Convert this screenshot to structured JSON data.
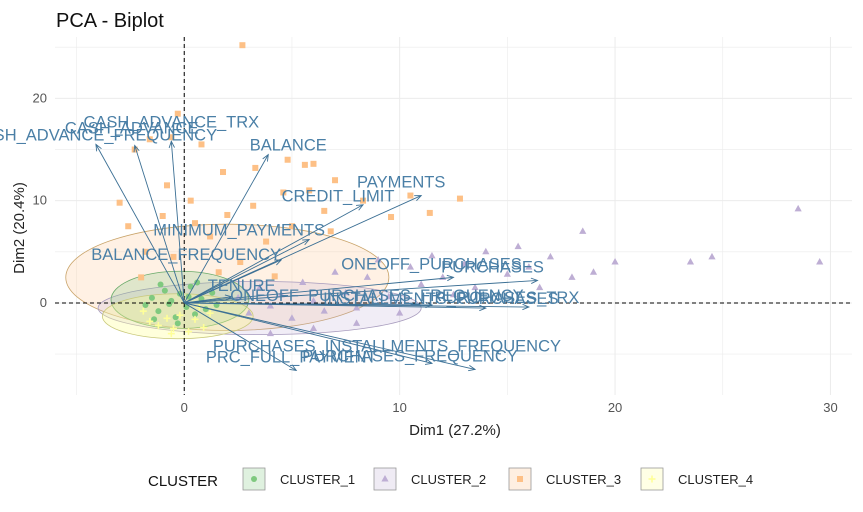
{
  "chart_data": {
    "type": "scatter",
    "title": "PCA - Biplot",
    "xlabel": "Dim1 (27.2%)",
    "ylabel": "Dim2 (20.4%)",
    "xlim": [
      -6,
      31
    ],
    "ylim": [
      -9,
      26
    ],
    "xticks": [
      0,
      10,
      20,
      30
    ],
    "yticks": [
      0,
      10,
      20
    ],
    "grid": true,
    "reference_lines": {
      "x": 0,
      "y": 0
    },
    "legend": {
      "title": "CLUSTER",
      "placement": "bottom",
      "entries": [
        {
          "name": "CLUSTER_1",
          "shape": "circle",
          "color": "#7fc97f"
        },
        {
          "name": "CLUSTER_2",
          "shape": "triangle",
          "color": "#beaed4"
        },
        {
          "name": "CLUSTER_3",
          "shape": "square",
          "color": "#fdc086"
        },
        {
          "name": "CLUSTER_4",
          "shape": "cross",
          "color": "#ffff99"
        }
      ]
    },
    "series": [
      {
        "name": "CLUSTER_1",
        "color": "#7fc97f",
        "points": [
          [
            -1.5,
            0.5
          ],
          [
            -1.2,
            -0.8
          ],
          [
            -0.9,
            1.2
          ],
          [
            -0.6,
            0.2
          ],
          [
            -0.4,
            -1.4
          ],
          [
            -0.2,
            0.9
          ],
          [
            0.1,
            -0.4
          ],
          [
            0.3,
            1.6
          ],
          [
            0.5,
            -1.1
          ],
          [
            0.8,
            0.4
          ],
          [
            1.0,
            -0.6
          ],
          [
            1.3,
            1.0
          ],
          [
            -1.8,
            -0.2
          ],
          [
            -1.1,
            1.8
          ],
          [
            -0.3,
            -2.0
          ],
          [
            0.6,
            2.0
          ],
          [
            1.5,
            -0.2
          ],
          [
            -0.7,
            -0.1
          ],
          [
            0.2,
            0.6
          ],
          [
            -1.4,
            -1.6
          ]
        ]
      },
      {
        "name": "CLUSTER_2",
        "color": "#beaed4",
        "points": [
          [
            2.5,
            0.5
          ],
          [
            3.0,
            -1.0
          ],
          [
            3.5,
            1.5
          ],
          [
            4.0,
            -0.3
          ],
          [
            4.5,
            0.8
          ],
          [
            5.0,
            -1.5
          ],
          [
            5.5,
            2.0
          ],
          [
            6.0,
            0.2
          ],
          [
            6.5,
            -0.8
          ],
          [
            7.0,
            3.0
          ],
          [
            7.5,
            1.0
          ],
          [
            8.0,
            -0.5
          ],
          [
            8.5,
            2.5
          ],
          [
            9.0,
            4.2
          ],
          [
            9.5,
            0.6
          ],
          [
            10.0,
            -1.0
          ],
          [
            10.5,
            3.5
          ],
          [
            11.0,
            1.8
          ],
          [
            11.5,
            4.6
          ],
          [
            12.0,
            2.5
          ],
          [
            12.5,
            0.8
          ],
          [
            13.0,
            3.8
          ],
          [
            13.5,
            1.5
          ],
          [
            14.0,
            5.0
          ],
          [
            15.0,
            2.8
          ],
          [
            15.5,
            5.5
          ],
          [
            16.0,
            3.5
          ],
          [
            16.5,
            1.5
          ],
          [
            17.0,
            4.5
          ],
          [
            18.0,
            2.5
          ],
          [
            18.5,
            7.0
          ],
          [
            19.0,
            3.0
          ],
          [
            20.0,
            4.0
          ],
          [
            23.5,
            4.0
          ],
          [
            24.5,
            4.5
          ],
          [
            28.5,
            9.2
          ],
          [
            29.5,
            4.0
          ],
          [
            6.0,
            -2.5
          ],
          [
            8.0,
            -2.0
          ],
          [
            4.0,
            -3.0
          ]
        ]
      },
      {
        "name": "CLUSTER_3",
        "color": "#fdc086",
        "points": [
          [
            2.7,
            25.2
          ],
          [
            4.8,
            14.0
          ],
          [
            3.3,
            13.2
          ],
          [
            5.6,
            13.5
          ],
          [
            -0.6,
            16.2
          ],
          [
            -1.6,
            16.0
          ],
          [
            -2.3,
            15.0
          ],
          [
            -0.3,
            18.5
          ],
          [
            0.8,
            15.5
          ],
          [
            1.8,
            12.8
          ],
          [
            5.8,
            11.0
          ],
          [
            6.0,
            13.6
          ],
          [
            7.0,
            12.0
          ],
          [
            8.3,
            10.0
          ],
          [
            10.5,
            10.5
          ],
          [
            11.4,
            8.8
          ],
          [
            12.8,
            10.2
          ],
          [
            4.6,
            10.8
          ],
          [
            3.2,
            9.5
          ],
          [
            2.0,
            8.6
          ],
          [
            0.5,
            7.8
          ],
          [
            -1.0,
            8.5
          ],
          [
            -2.6,
            7.5
          ],
          [
            -3.0,
            9.8
          ],
          [
            -1.8,
            5.0
          ],
          [
            1.2,
            6.5
          ],
          [
            3.8,
            6.0
          ],
          [
            5.0,
            7.5
          ],
          [
            6.8,
            7.0
          ],
          [
            2.6,
            4.0
          ],
          [
            -0.5,
            4.5
          ],
          [
            1.6,
            3.0
          ],
          [
            -2.0,
            2.5
          ],
          [
            4.2,
            2.6
          ],
          [
            9.6,
            8.4
          ],
          [
            6.5,
            9.0
          ],
          [
            -0.8,
            11.5
          ],
          [
            0.3,
            10.0
          ]
        ]
      },
      {
        "name": "CLUSTER_4",
        "color": "#ffff99",
        "points": [
          [
            -1.6,
            -1.8
          ],
          [
            -1.2,
            -2.2
          ],
          [
            -0.8,
            -1.5
          ],
          [
            -0.5,
            -2.5
          ],
          [
            -0.2,
            -1.2
          ],
          [
            0.2,
            -2.8
          ],
          [
            0.5,
            -1.6
          ],
          [
            0.9,
            -2.4
          ],
          [
            1.2,
            -1.0
          ],
          [
            -1.9,
            -0.8
          ],
          [
            -0.6,
            -3.0
          ],
          [
            0.7,
            -0.4
          ]
        ]
      }
    ],
    "variables": [
      {
        "name": "CASH_ADVANCE",
        "x": -2.3,
        "y": 15.4
      },
      {
        "name": "CASH_ADVANCE_TRX",
        "x": -0.6,
        "y": 15.8
      },
      {
        "name": "CASH_ADVANCE_FREQUENCY",
        "x": -4.1,
        "y": 15.5
      },
      {
        "name": "BALANCE",
        "x": 3.9,
        "y": 14.5
      },
      {
        "name": "CREDIT_LIMIT",
        "x": 8.3,
        "y": 9.6
      },
      {
        "name": "PAYMENTS",
        "x": 11.0,
        "y": 10.5
      },
      {
        "name": "MINIMUM_PAYMENTS",
        "x": 5.8,
        "y": 6.2
      },
      {
        "name": "BALANCE_FREQUENCY",
        "x": 4.5,
        "y": 4.2
      },
      {
        "name": "ONEOFF_PURCHASES",
        "x": 12.5,
        "y": 2.5
      },
      {
        "name": "PURCHASES",
        "x": 16.4,
        "y": 2.2
      },
      {
        "name": "TENURE",
        "x": 2.2,
        "y": 0.6
      },
      {
        "name": "ONEOFF_PURCHASES_FREQUENCY",
        "x": 11.5,
        "y": -0.2
      },
      {
        "name": "INSTALLMENTS_PURCHASES",
        "x": 14.0,
        "y": -0.5
      },
      {
        "name": "PURCHASES_TRX",
        "x": 16.0,
        "y": -0.4
      },
      {
        "name": "PURCHASES_INSTALLMENTS_FREQUENCY",
        "x": 11.5,
        "y": -5.9
      },
      {
        "name": "PURCHASES_FREQUENCY",
        "x": 13.5,
        "y": -6.5
      },
      {
        "name": "PRC_FULL_PAYMENT",
        "x": 5.2,
        "y": -6.6
      }
    ]
  }
}
